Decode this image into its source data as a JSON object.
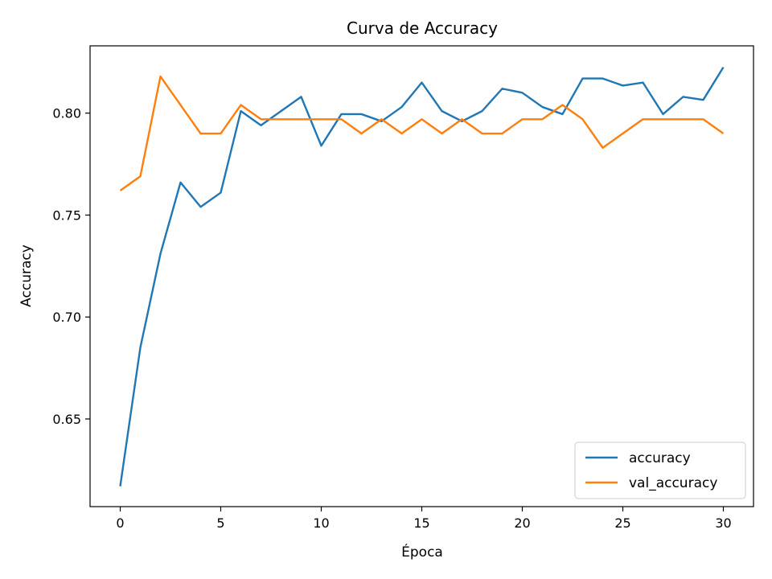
{
  "chart_data": {
    "type": "line",
    "title": "Curva de Accuracy",
    "xlabel": "Época",
    "ylabel": "Accuracy",
    "xlim": [
      -1.5,
      31.5
    ],
    "ylim": [
      0.607,
      0.833
    ],
    "xticks": [
      0,
      5,
      10,
      15,
      20,
      25,
      30
    ],
    "yticks": [
      0.65,
      0.7,
      0.75,
      0.8
    ],
    "ytick_labels": [
      "0.65",
      "0.70",
      "0.75",
      "0.80"
    ],
    "grid": false,
    "legend": "lower-right",
    "x": [
      0,
      1,
      2,
      3,
      4,
      5,
      6,
      7,
      8,
      9,
      10,
      11,
      12,
      13,
      14,
      15,
      16,
      17,
      18,
      19,
      20,
      21,
      22,
      23,
      24,
      25,
      26,
      27,
      28,
      29,
      30
    ],
    "series": [
      {
        "name": "accuracy",
        "color": "#1f77b4",
        "values": [
          0.617,
          0.685,
          0.731,
          0.766,
          0.754,
          0.761,
          0.801,
          0.794,
          0.801,
          0.808,
          0.784,
          0.7995,
          0.7995,
          0.796,
          0.803,
          0.815,
          0.801,
          0.796,
          0.801,
          0.812,
          0.81,
          0.803,
          0.7995,
          0.817,
          0.817,
          0.8135,
          0.815,
          0.7995,
          0.808,
          0.8065,
          0.8225
        ]
      },
      {
        "name": "val_accuracy",
        "color": "#ff7f0e",
        "values": [
          0.762,
          0.769,
          0.818,
          0.804,
          0.79,
          0.79,
          0.804,
          0.797,
          0.797,
          0.797,
          0.797,
          0.797,
          0.79,
          0.797,
          0.79,
          0.797,
          0.79,
          0.797,
          0.79,
          0.79,
          0.797,
          0.797,
          0.804,
          0.797,
          0.783,
          0.79,
          0.797,
          0.797,
          0.797,
          0.797,
          0.79
        ]
      }
    ]
  }
}
